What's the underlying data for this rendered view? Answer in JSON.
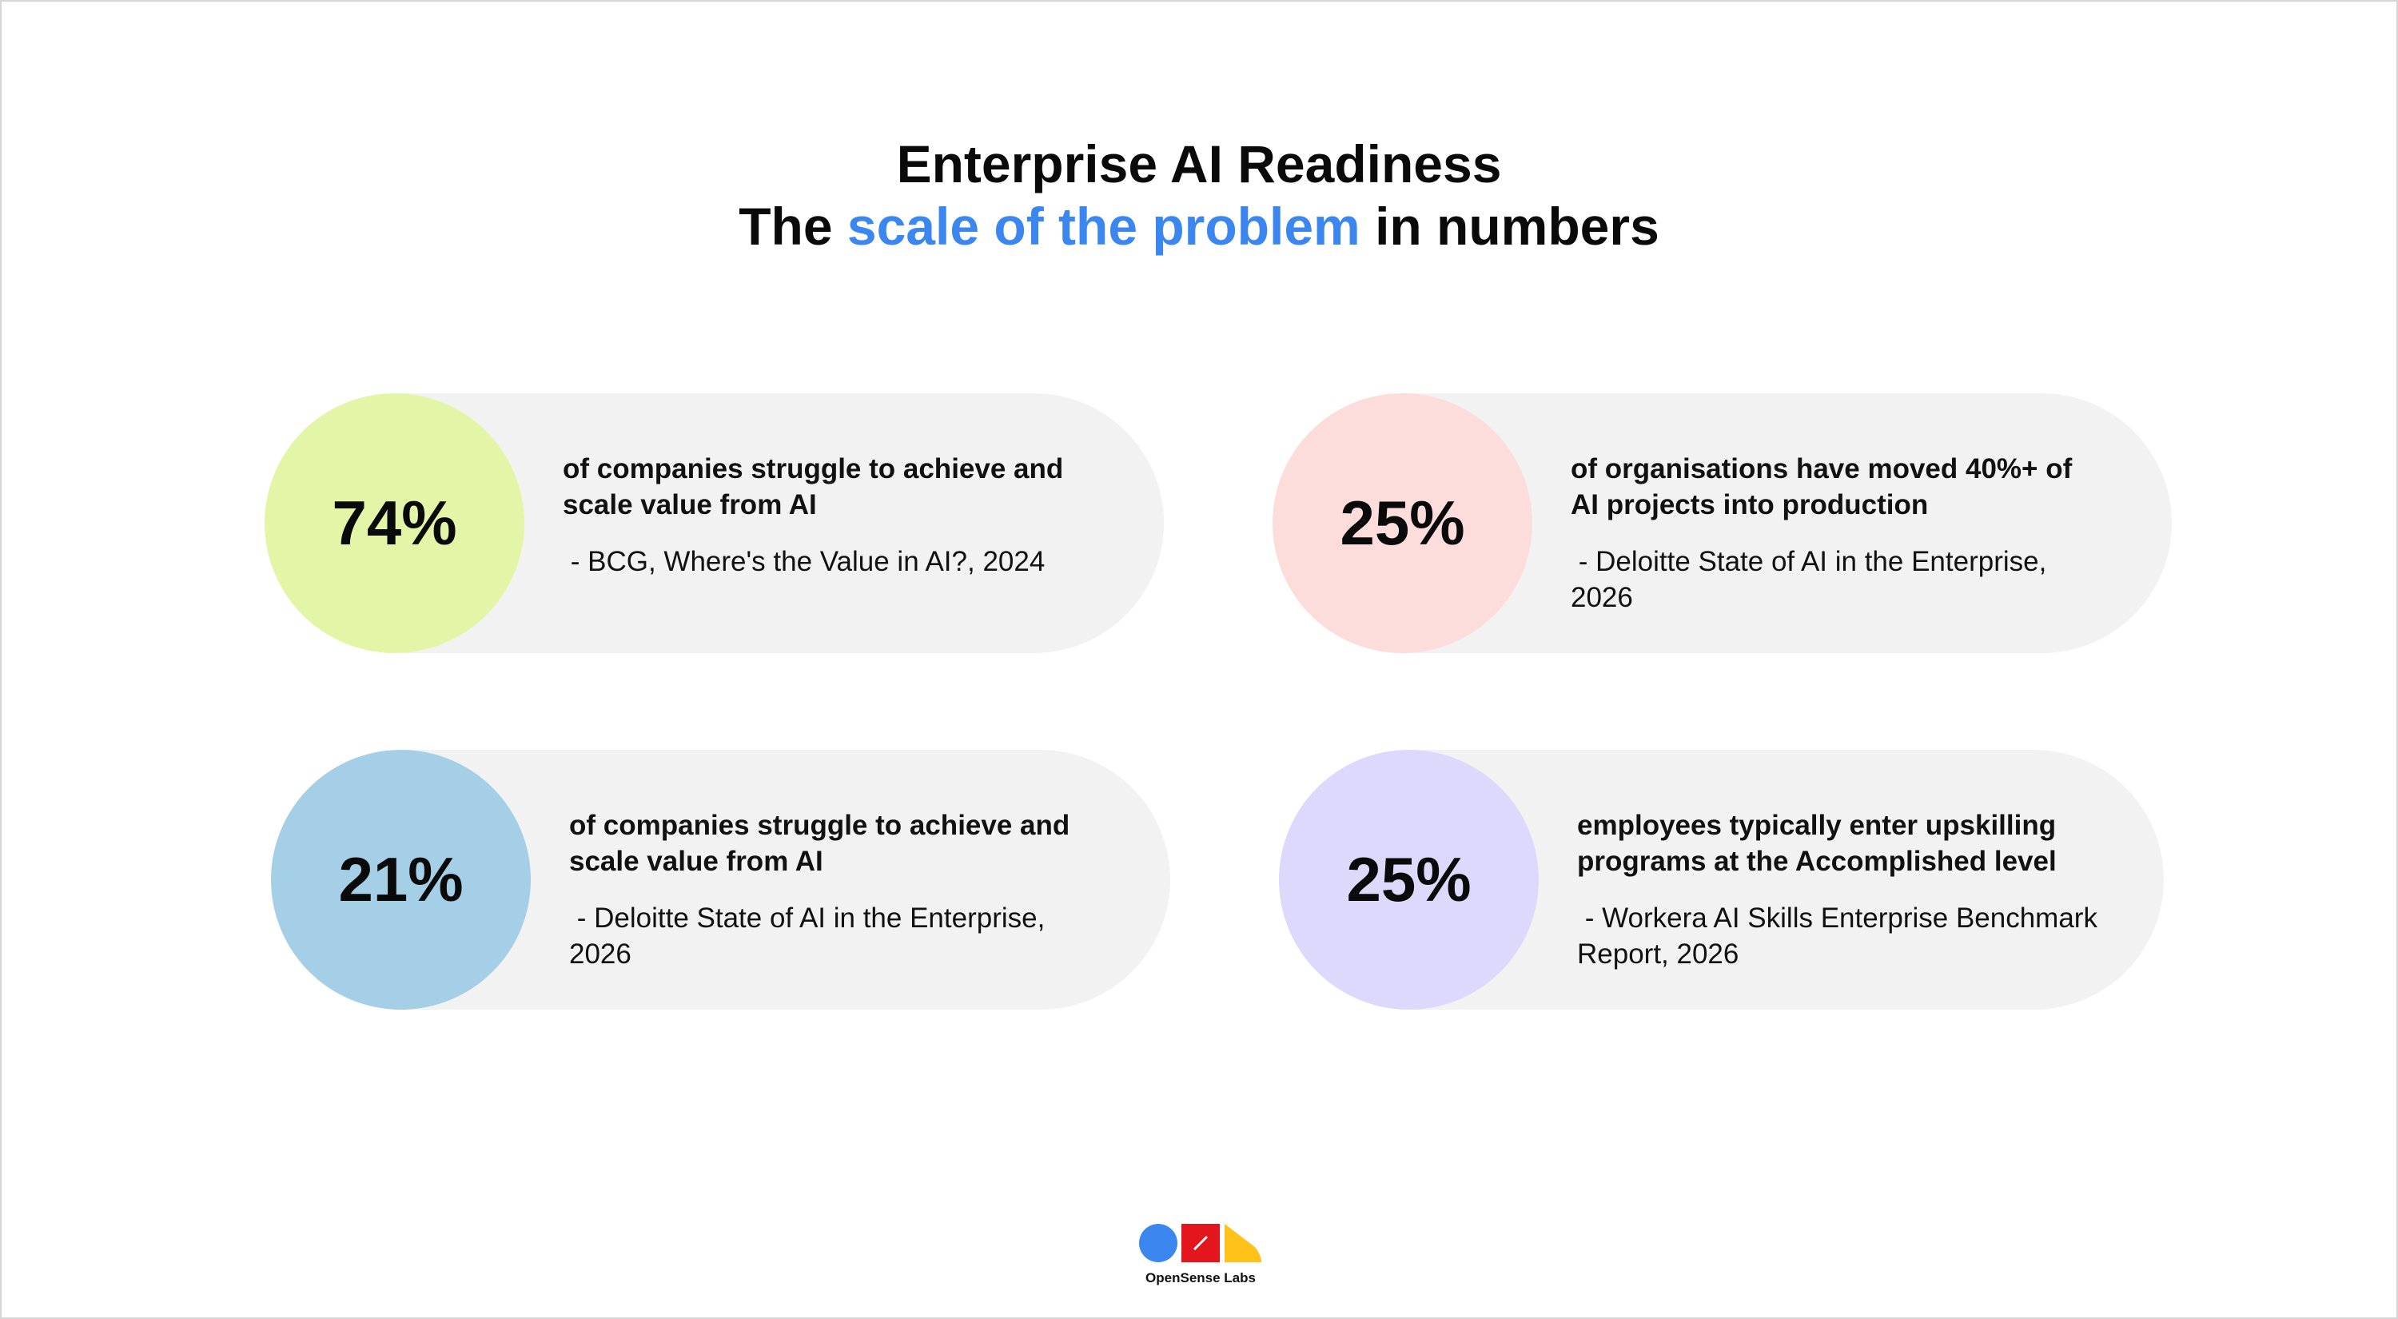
{
  "header": {
    "title": "Enterprise AI Readiness",
    "subtitle_parts": [
      "The",
      "scale of the problem",
      "in numbers"
    ]
  },
  "cards": [
    {
      "stat": "74%",
      "description": "of companies struggle to achieve and scale value from AI",
      "source": " - BCG, Where's the Value in AI?, 2024"
    },
    {
      "stat": "25%",
      "description": "of organisations have moved 40%+ of AI projects into production",
      "source": " - Deloitte State of AI in the Enterprise, 2026"
    },
    {
      "stat": "21%",
      "description": "of companies struggle to achieve and scale value from AI",
      "source": " - Deloitte State of AI in the Enterprise, 2026"
    },
    {
      "stat": "25%",
      "description": "employees typically enter upskilling programs at the Accomplished level",
      "source": " - Workera AI Skills Enterprise Benchmark Report, 2026"
    }
  ],
  "footer": {
    "logo_text": "OpenSense Labs"
  }
}
